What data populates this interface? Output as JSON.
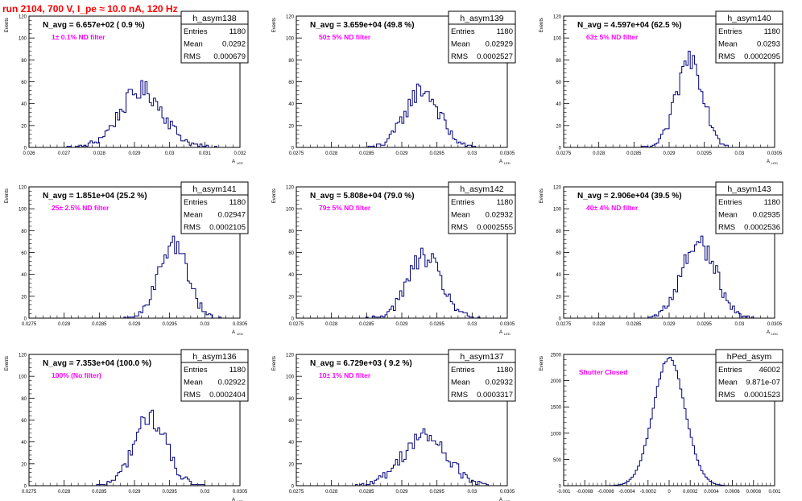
{
  "run_title": "run 2104,   700 V, I_pe ≈ 10.0 nA, 120 Hz",
  "colors": {
    "title": "#ff0000",
    "histogram": "#00007a",
    "annotation": "#ff00ff",
    "axes": "#000000"
  },
  "stat_labels": {
    "entries": "Entries",
    "mean": "Mean",
    "rms": "RMS"
  },
  "chart_data": [
    {
      "type": "histogram",
      "name": "h_asym138",
      "nav_text": "N_avg = 6.657e+02 ( 0.9 %)",
      "filter_text": "1± 0.1% ND filter",
      "entries": "1180",
      "mean": "0.0292",
      "rms": "0.000679",
      "ylabel": "Events",
      "xlabel": "A",
      "xlabel_sub": "LED",
      "xlim": [
        0.026,
        0.032
      ],
      "ylim": [
        0,
        120
      ],
      "yticks": [
        "0",
        "20",
        "40",
        "60",
        "80",
        "100",
        "120"
      ],
      "xticks": [
        "0.026",
        "0.027",
        "0.028",
        "0.029",
        "0.03",
        "0.031",
        "0.032"
      ],
      "peak_x": 0.0292,
      "peak_value": 52,
      "sigma": 0.00062,
      "bins": 100
    },
    {
      "type": "histogram",
      "name": "h_asym139",
      "nav_text": "N_avg = 3.659e+04 (49.8 %)",
      "filter_text": "50± 5% ND filter",
      "entries": "1180",
      "mean": "0.02929",
      "rms": "0.0002527",
      "ylabel": "Events",
      "xlabel": "A",
      "xlabel_sub": "LED",
      "xlim": [
        0.0275,
        0.0305
      ],
      "ylim": [
        0,
        120
      ],
      "yticks": [
        "0",
        "20",
        "40",
        "60",
        "80",
        "100",
        "120"
      ],
      "xticks": [
        "0.0275",
        "0.028",
        "0.0285",
        "0.029",
        "0.0295",
        "0.03",
        "0.0305"
      ],
      "peak_x": 0.02929,
      "peak_value": 53,
      "sigma": 0.00024,
      "bins": 100
    },
    {
      "type": "histogram",
      "name": "h_asym140",
      "nav_text": "N_avg = 4.597e+04 (62.5 %)",
      "filter_text": "63± 5% ND filter",
      "entries": "1180",
      "mean": "0.0293",
      "rms": "0.0002095",
      "ylabel": "Events",
      "xlabel": "A",
      "xlabel_sub": "LED",
      "xlim": [
        0.0275,
        0.0305
      ],
      "ylim": [
        0,
        120
      ],
      "yticks": [
        "0",
        "20",
        "40",
        "60",
        "80",
        "100",
        "120"
      ],
      "xticks": [
        "0.0275",
        "0.028",
        "0.0285",
        "0.029",
        "0.0295",
        "0.03",
        "0.0305"
      ],
      "peak_x": 0.0293,
      "peak_value": 82,
      "sigma": 0.00019,
      "bins": 100
    },
    {
      "type": "histogram",
      "name": "h_asym141",
      "nav_text": "N_avg = 1.851e+04 (25.2 %)",
      "filter_text": "25± 2.5% ND filter",
      "entries": "1180",
      "mean": "0.02947",
      "rms": "0.0002105",
      "ylabel": "Events",
      "xlabel": "A",
      "xlabel_sub": "LED",
      "xlim": [
        0.0275,
        0.0305
      ],
      "ylim": [
        0,
        120
      ],
      "yticks": [
        "0",
        "20",
        "40",
        "60",
        "80",
        "100",
        "120"
      ],
      "xticks": [
        "0.0275",
        "0.028",
        "0.0285",
        "0.029",
        "0.0295",
        "0.03",
        "0.0305"
      ],
      "peak_x": 0.02955,
      "peak_value": 69,
      "sigma": 0.0002,
      "bins": 100
    },
    {
      "type": "histogram",
      "name": "h_asym142",
      "nav_text": "N_avg = 5.808e+04 (79.0 %)",
      "filter_text": "79± 5% ND filter",
      "entries": "1180",
      "mean": "0.02932",
      "rms": "0.0002555",
      "ylabel": "Events",
      "xlabel": "A",
      "xlabel_sub": "LED",
      "xlim": [
        0.0275,
        0.0305
      ],
      "ylim": [
        0,
        120
      ],
      "yticks": [
        "0",
        "20",
        "40",
        "60",
        "80",
        "100",
        "120"
      ],
      "xticks": [
        "0.0275",
        "0.028",
        "0.0285",
        "0.029",
        "0.0295",
        "0.03",
        "0.0305"
      ],
      "peak_x": 0.02932,
      "peak_value": 56,
      "sigma": 0.00024,
      "bins": 100
    },
    {
      "type": "histogram",
      "name": "h_asym143",
      "nav_text": "N_avg = 2.906e+04 (39.5 %)",
      "filter_text": "40± 4% ND filter",
      "entries": "1180",
      "mean": "0.02935",
      "rms": "0.0002536",
      "ylabel": "Events",
      "xlabel": "A",
      "xlabel_sub": "LED",
      "xlim": [
        0.0275,
        0.0305
      ],
      "ylim": [
        0,
        120
      ],
      "yticks": [
        "0",
        "20",
        "40",
        "60",
        "80",
        "100",
        "120"
      ],
      "xticks": [
        "0.0275",
        "0.028",
        "0.0285",
        "0.029",
        "0.0295",
        "0.03",
        "0.0305"
      ],
      "peak_x": 0.02942,
      "peak_value": 70,
      "sigma": 0.00024,
      "bins": 100
    },
    {
      "type": "histogram",
      "name": "h_asym136",
      "nav_text": "N_avg = 7.353e+04 (100.0 %)",
      "filter_text": "100% (No filter)",
      "entries": "1180",
      "mean": "0.02922",
      "rms": "0.0002404",
      "ylabel": "Events",
      "xlabel": "A",
      "xlabel_sub": "LED",
      "xlim": [
        0.0275,
        0.0305
      ],
      "ylim": [
        0,
        120
      ],
      "yticks": [
        "0",
        "20",
        "40",
        "60",
        "80",
        "100",
        "120"
      ],
      "xticks": [
        "0.0275",
        "0.028",
        "0.0285",
        "0.029",
        "0.0295",
        "0.03",
        "0.0305"
      ],
      "peak_x": 0.02922,
      "peak_value": 63,
      "sigma": 0.00023,
      "bins": 100
    },
    {
      "type": "histogram",
      "name": "h_asym137",
      "nav_text": "N_avg = 6.729e+03 ( 9.2 %)",
      "filter_text": "10± 1% ND filter",
      "entries": "1180",
      "mean": "0.02932",
      "rms": "0.0003317",
      "ylabel": "Events",
      "xlabel": "A",
      "xlabel_sub": "LED",
      "xlim": [
        0.0275,
        0.0305
      ],
      "ylim": [
        0,
        120
      ],
      "yticks": [
        "0",
        "20",
        "40",
        "60",
        "80",
        "100",
        "120"
      ],
      "xticks": [
        "0.0275",
        "0.028",
        "0.0285",
        "0.029",
        "0.0295",
        "0.03",
        "0.0305"
      ],
      "peak_x": 0.02932,
      "peak_value": 45,
      "sigma": 0.00032,
      "bins": 100
    },
    {
      "type": "histogram",
      "name": "hPed_asym",
      "nav_text": "",
      "filter_text": "Shutter Closed",
      "entries": "46002",
      "mean": "9.871e-07",
      "rms": "0.0001523",
      "ylabel": "Events",
      "xlabel": "",
      "xlabel_sub": "",
      "xlim": [
        -0.001,
        0.001
      ],
      "ylim": [
        0,
        2500
      ],
      "yticks": [
        "0",
        "500",
        "1000",
        "1500",
        "2000",
        "2500"
      ],
      "xticks": [
        "-0.001",
        "-0.0008",
        "-0.0006",
        "-0.0004",
        "-0.0002",
        "0",
        "0.0002",
        "0.0004",
        "0.0006",
        "0.0008",
        "0.001"
      ],
      "peak_x": 0.0,
      "peak_value": 2440,
      "sigma": 0.00015,
      "bins": 100
    }
  ]
}
